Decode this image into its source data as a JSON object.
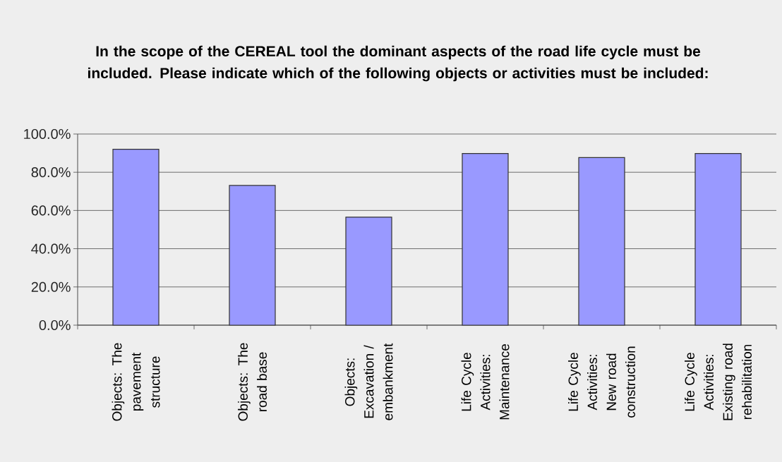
{
  "chart_data": {
    "type": "bar",
    "title": "In the scope of the CEREAL tool the dominant aspects of the road life cycle must be included. Please indicate which of the following objects or activities must be included:",
    "categories": [
      "Objects: The pavement structure",
      "Objects: The road base",
      "Objects: Excavation / embankment",
      "Life Cycle Activities: Maintenance",
      "Life Cycle Activities: New road construction",
      "Life Cycle Activities: Existing road rehabilitation"
    ],
    "values": [
      92.0,
      73.1,
      56.5,
      89.8,
      87.7,
      89.8
    ],
    "color": "#9999ff",
    "ylim": [
      0,
      100
    ],
    "yticks": [
      {
        "value": 0,
        "label": "0.0%"
      },
      {
        "value": 20,
        "label": "20.0%"
      },
      {
        "value": 40,
        "label": "40.0%"
      },
      {
        "value": 60,
        "label": "60.0%"
      },
      {
        "value": 80,
        "label": "80.0%"
      },
      {
        "value": 100,
        "label": "100.0%"
      }
    ],
    "grid": "y"
  }
}
